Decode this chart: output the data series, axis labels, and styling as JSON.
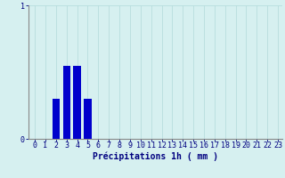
{
  "xlabel": "Précipitations 1h ( mm )",
  "categories": [
    0,
    1,
    2,
    3,
    4,
    5,
    6,
    7,
    8,
    9,
    10,
    11,
    12,
    13,
    14,
    15,
    16,
    17,
    18,
    19,
    20,
    21,
    22,
    23
  ],
  "values": [
    0.0,
    0.0,
    0.3,
    0.55,
    0.55,
    0.3,
    0.0,
    0.0,
    0.0,
    0.0,
    0.0,
    0.0,
    0.0,
    0.0,
    0.0,
    0.0,
    0.0,
    0.0,
    0.0,
    0.0,
    0.0,
    0.0,
    0.0,
    0.0
  ],
  "bar_color": "#0000cc",
  "bg_color": "#d6f0f0",
  "grid_color": "#b8dede",
  "spine_color": "#888888",
  "ylim": [
    0,
    1.0
  ],
  "yticks": [
    0,
    1
  ],
  "xlim": [
    -0.6,
    23.4
  ],
  "xlabel_fontsize": 7,
  "tick_fontsize": 6,
  "tick_color": "#000080",
  "label_color": "#000080"
}
